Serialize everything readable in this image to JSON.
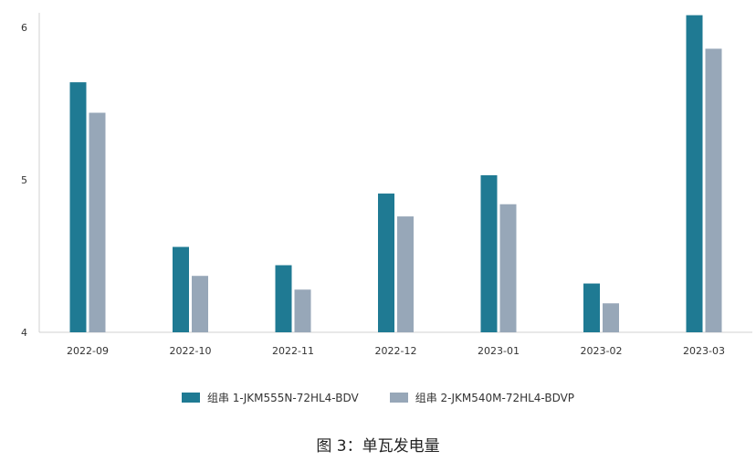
{
  "chart_data": {
    "type": "bar",
    "categories": [
      "2022-09",
      "2022-10",
      "2022-11",
      "2022-12",
      "2023-01",
      "2023-02",
      "2023-03"
    ],
    "series": [
      {
        "name": "组串 1-JKM555N-72HL4-BDV",
        "color": "#1f7a93",
        "values": [
          5.64,
          4.56,
          4.44,
          4.91,
          5.03,
          4.32,
          6.08
        ]
      },
      {
        "name": "组串 2-JKM540M-72HL4-BDVP",
        "color": "#97a7b8",
        "values": [
          5.44,
          4.37,
          4.28,
          4.76,
          4.84,
          4.19,
          5.86
        ]
      }
    ],
    "y_ticks": [
      "4",
      "5",
      "6"
    ],
    "ylim": [
      4,
      6.2
    ],
    "grid": false,
    "legend_position": "bottom"
  },
  "caption": "图 3：单瓦发电量"
}
